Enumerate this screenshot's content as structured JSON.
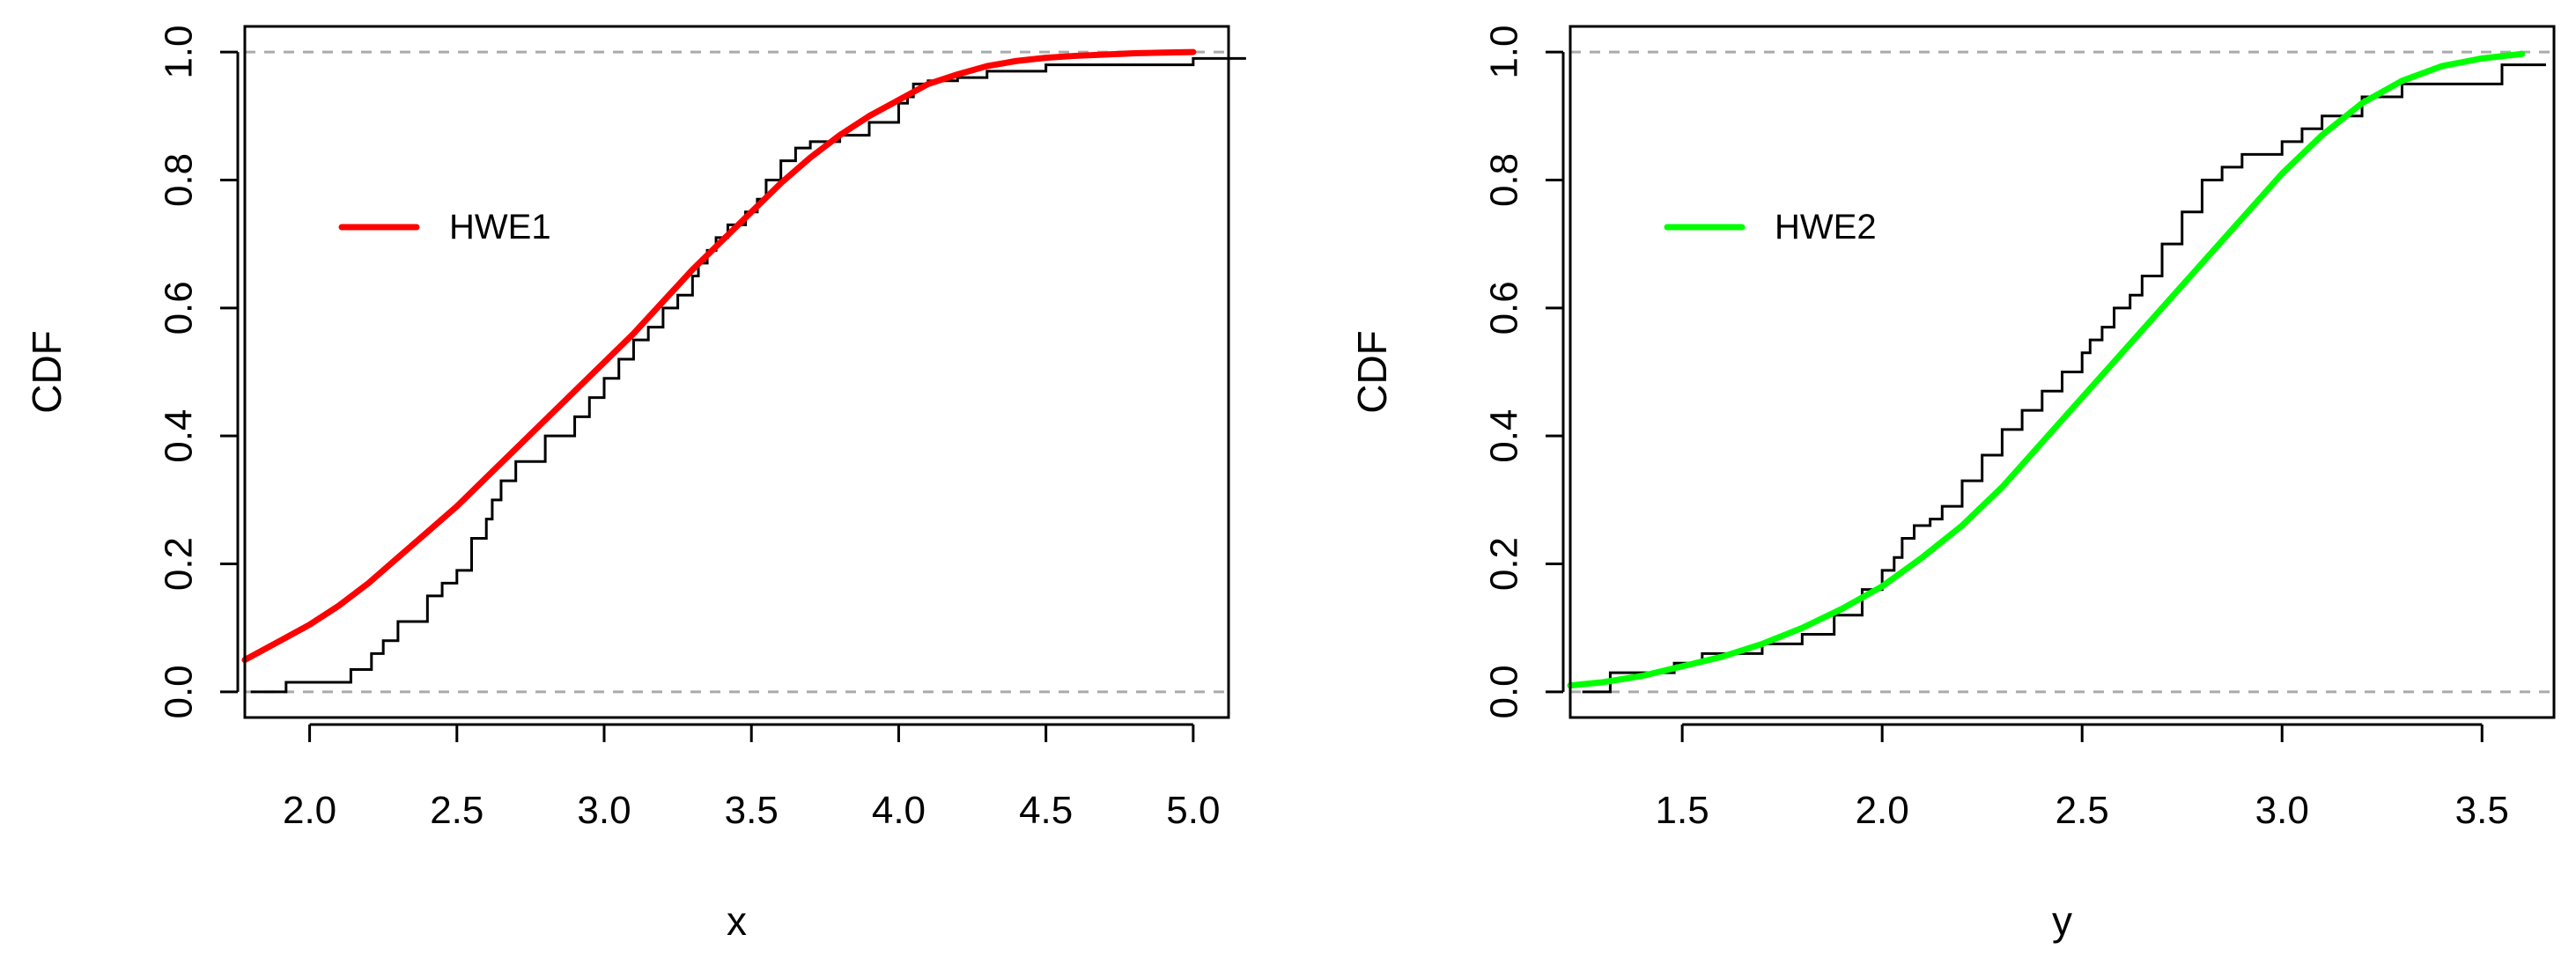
{
  "chart_data": [
    {
      "type": "line",
      "title": "",
      "xlabel": "x",
      "ylabel": "CDF",
      "xlim": [
        1.78,
        5.12
      ],
      "ylim": [
        -0.04,
        1.04
      ],
      "xticks": [
        2.0,
        2.5,
        3.0,
        3.5,
        4.0,
        4.5,
        5.0
      ],
      "xtick_labels": [
        "2.0",
        "2.5",
        "3.0",
        "3.5",
        "4.0",
        "4.5",
        "5.0"
      ],
      "yticks": [
        0.0,
        0.2,
        0.4,
        0.6,
        0.8,
        1.0
      ],
      "ytick_labels": [
        "0.0",
        "0.2",
        "0.4",
        "0.6",
        "0.8",
        "1.0"
      ],
      "reference_lines": [
        0,
        1
      ],
      "legend": {
        "position": "top-left",
        "entries": [
          {
            "label": "HWE1",
            "color": "#ff0000"
          }
        ]
      },
      "series": [
        {
          "name": "HWE1",
          "kind": "fitted-cdf",
          "color": "#ff0000",
          "x": [
            1.78,
            1.9,
            2.0,
            2.1,
            2.2,
            2.3,
            2.4,
            2.5,
            2.6,
            2.7,
            2.8,
            2.9,
            3.0,
            3.1,
            3.2,
            3.3,
            3.4,
            3.5,
            3.6,
            3.7,
            3.8,
            3.9,
            4.0,
            4.1,
            4.2,
            4.3,
            4.4,
            4.5,
            4.6,
            4.7,
            4.8,
            4.9,
            5.0
          ],
          "y": [
            0.05,
            0.08,
            0.105,
            0.135,
            0.17,
            0.21,
            0.25,
            0.29,
            0.335,
            0.38,
            0.425,
            0.47,
            0.515,
            0.56,
            0.61,
            0.66,
            0.705,
            0.75,
            0.795,
            0.835,
            0.87,
            0.9,
            0.925,
            0.95,
            0.965,
            0.978,
            0.986,
            0.991,
            0.994,
            0.996,
            0.998,
            0.999,
            1.0
          ]
        },
        {
          "name": "",
          "kind": "empirical-cdf",
          "color": "#000000",
          "x": [
            1.8,
            1.92,
            2.14,
            2.21,
            2.25,
            2.3,
            2.4,
            2.45,
            2.5,
            2.55,
            2.6,
            2.62,
            2.65,
            2.7,
            2.8,
            2.9,
            2.95,
            3.0,
            3.05,
            3.1,
            3.15,
            3.2,
            3.25,
            3.3,
            3.32,
            3.35,
            3.38,
            3.42,
            3.48,
            3.52,
            3.55,
            3.6,
            3.65,
            3.7,
            3.8,
            3.9,
            4.0,
            4.03,
            4.05,
            4.1,
            4.2,
            4.3,
            4.5,
            5.0
          ],
          "y": [
            0.0,
            0.015,
            0.035,
            0.06,
            0.08,
            0.11,
            0.15,
            0.17,
            0.19,
            0.24,
            0.27,
            0.3,
            0.33,
            0.36,
            0.4,
            0.43,
            0.46,
            0.49,
            0.52,
            0.55,
            0.57,
            0.6,
            0.62,
            0.65,
            0.67,
            0.69,
            0.71,
            0.73,
            0.75,
            0.77,
            0.8,
            0.83,
            0.85,
            0.86,
            0.87,
            0.89,
            0.92,
            0.93,
            0.95,
            0.955,
            0.96,
            0.97,
            0.98,
            0.99
          ]
        }
      ]
    },
    {
      "type": "line",
      "title": "",
      "xlabel": "y",
      "ylabel": "CDF",
      "xlim": [
        1.22,
        3.68
      ],
      "ylim": [
        -0.04,
        1.04
      ],
      "xticks": [
        1.5,
        2.0,
        2.5,
        3.0,
        3.5
      ],
      "xtick_labels": [
        "1.5",
        "2.0",
        "2.5",
        "3.0",
        "3.5"
      ],
      "yticks": [
        0.0,
        0.2,
        0.4,
        0.6,
        0.8,
        1.0
      ],
      "ytick_labels": [
        "0.0",
        "0.2",
        "0.4",
        "0.6",
        "0.8",
        "1.0"
      ],
      "reference_lines": [
        0,
        1
      ],
      "legend": {
        "position": "top-left",
        "entries": [
          {
            "label": "HWE2",
            "color": "#00ff00"
          }
        ]
      },
      "series": [
        {
          "name": "HWE2",
          "kind": "fitted-cdf",
          "color": "#00ff00",
          "x": [
            1.22,
            1.3,
            1.4,
            1.5,
            1.6,
            1.7,
            1.8,
            1.9,
            2.0,
            2.1,
            2.2,
            2.3,
            2.4,
            2.5,
            2.6,
            2.7,
            2.8,
            2.9,
            3.0,
            3.1,
            3.2,
            3.3,
            3.4,
            3.5,
            3.6
          ],
          "y": [
            0.01,
            0.015,
            0.025,
            0.04,
            0.055,
            0.075,
            0.1,
            0.13,
            0.165,
            0.21,
            0.26,
            0.32,
            0.39,
            0.46,
            0.53,
            0.6,
            0.67,
            0.74,
            0.81,
            0.87,
            0.92,
            0.955,
            0.978,
            0.99,
            0.997
          ]
        },
        {
          "name": "",
          "kind": "empirical-cdf",
          "color": "#000000",
          "x": [
            1.25,
            1.32,
            1.48,
            1.55,
            1.7,
            1.8,
            1.88,
            1.95,
            2.0,
            2.03,
            2.05,
            2.08,
            2.12,
            2.15,
            2.2,
            2.25,
            2.3,
            2.35,
            2.4,
            2.45,
            2.5,
            2.52,
            2.55,
            2.58,
            2.62,
            2.65,
            2.7,
            2.75,
            2.8,
            2.85,
            2.9,
            3.0,
            3.05,
            3.1,
            3.2,
            3.3,
            3.55
          ],
          "y": [
            0.0,
            0.03,
            0.045,
            0.06,
            0.075,
            0.09,
            0.12,
            0.16,
            0.19,
            0.21,
            0.24,
            0.26,
            0.27,
            0.29,
            0.33,
            0.37,
            0.41,
            0.44,
            0.47,
            0.5,
            0.53,
            0.55,
            0.57,
            0.6,
            0.62,
            0.65,
            0.7,
            0.75,
            0.8,
            0.82,
            0.84,
            0.86,
            0.88,
            0.9,
            0.93,
            0.95,
            0.98
          ]
        }
      ]
    }
  ]
}
